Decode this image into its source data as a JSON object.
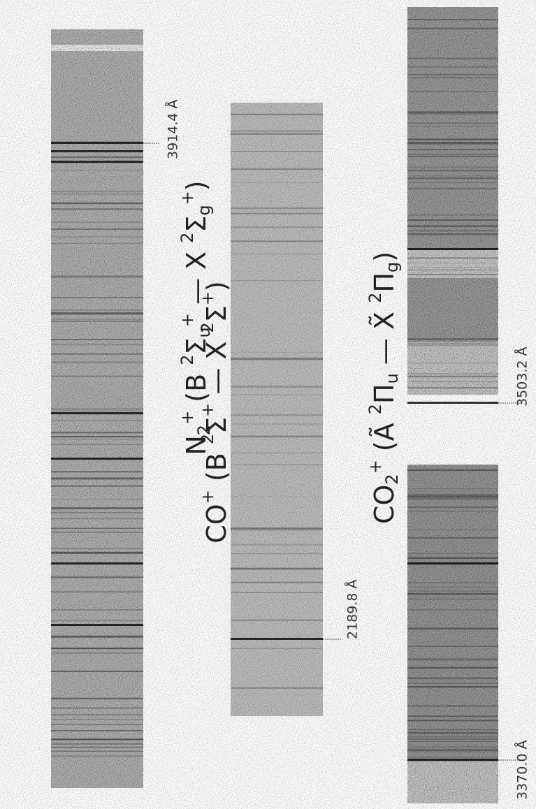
{
  "labels": {
    "n2": [
      {
        "text": "N",
        "style": "normal"
      },
      {
        "text": "2",
        "style": "sub"
      },
      {
        "text": "+",
        "style": "sup"
      },
      {
        "text": " (B ",
        "style": "normal"
      },
      {
        "text": "2",
        "style": "sup"
      },
      {
        "text": "Σ",
        "style": "normal"
      },
      {
        "text": "u",
        "style": "sub"
      },
      {
        "text": "+",
        "style": "sup"
      },
      {
        "text": " — X ",
        "style": "normal"
      },
      {
        "text": "2",
        "style": "sup"
      },
      {
        "text": "Σ",
        "style": "normal"
      },
      {
        "text": "g",
        "style": "sub"
      },
      {
        "text": "+",
        "style": "sup"
      },
      {
        "text": ")",
        "style": "normal"
      }
    ],
    "co": [
      {
        "text": "CO",
        "style": "normal"
      },
      {
        "text": "+",
        "style": "sup"
      },
      {
        "text": " (B ",
        "style": "normal"
      },
      {
        "text": "2",
        "style": "sup"
      },
      {
        "text": "Σ",
        "style": "normal"
      },
      {
        "text": "+",
        "style": "sup"
      },
      {
        "text": " — X ",
        "style": "normal"
      },
      {
        "text": "2",
        "style": "sup"
      },
      {
        "text": "Σ",
        "style": "normal"
      },
      {
        "text": "+",
        "style": "sup"
      },
      {
        "text": ")",
        "style": "normal"
      }
    ],
    "co2": [
      {
        "text": "CO",
        "style": "normal"
      },
      {
        "text": "2",
        "style": "sub"
      },
      {
        "text": "+",
        "style": "sup"
      },
      {
        "text": " (Ã ",
        "style": "normal"
      },
      {
        "text": "2",
        "style": "sup"
      },
      {
        "text": "Π",
        "style": "normal"
      },
      {
        "text": "u",
        "style": "sub"
      },
      {
        "text": " — X̃ ",
        "style": "normal"
      },
      {
        "text": "2",
        "style": "sup"
      },
      {
        "text": "Π",
        "style": "normal"
      },
      {
        "text": "g",
        "style": "sub"
      },
      {
        "text": ")",
        "style": "normal"
      }
    ]
  },
  "wavelengths": {
    "n2": "3914.4 Å",
    "co": "2189.8 Å",
    "co2_upper": "3503.2 Å",
    "co2_lower": "3370.0 Å"
  }
}
